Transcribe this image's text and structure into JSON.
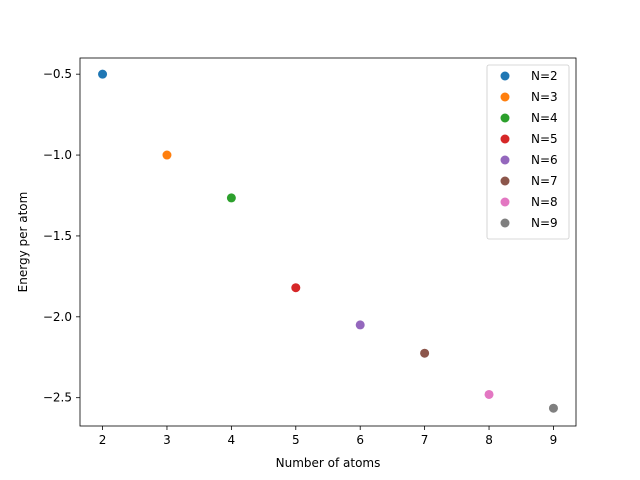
{
  "chart_data": {
    "type": "scatter",
    "title": "",
    "xlabel": "Number of atoms",
    "ylabel": "Energy per atom",
    "xlim": [
      1.65,
      9.35
    ],
    "ylim": [
      -2.675,
      -0.4
    ],
    "x_ticks": [
      {
        "value": 2,
        "label": "2"
      },
      {
        "value": 3,
        "label": "3"
      },
      {
        "value": 4,
        "label": "4"
      },
      {
        "value": 5,
        "label": "5"
      },
      {
        "value": 6,
        "label": "6"
      },
      {
        "value": 7,
        "label": "7"
      },
      {
        "value": 8,
        "label": "8"
      },
      {
        "value": 9,
        "label": "9"
      }
    ],
    "y_ticks": [
      {
        "value": -0.5,
        "label": "−0.5"
      },
      {
        "value": -1.0,
        "label": "−1.0"
      },
      {
        "value": -1.5,
        "label": "−1.5"
      },
      {
        "value": -2.0,
        "label": "−2.0"
      },
      {
        "value": -2.5,
        "label": "−2.5"
      }
    ],
    "grid": false,
    "legend_position": "top-right",
    "series": [
      {
        "name": "N=2",
        "color": "#1f77b4",
        "x": [
          2
        ],
        "y": [
          -0.5
        ]
      },
      {
        "name": "N=3",
        "color": "#ff7f0e",
        "x": [
          3
        ],
        "y": [
          -1.0
        ]
      },
      {
        "name": "N=4",
        "color": "#2ca02c",
        "x": [
          4
        ],
        "y": [
          -1.265
        ]
      },
      {
        "name": "N=5",
        "color": "#d62728",
        "x": [
          5
        ],
        "y": [
          -1.82
        ]
      },
      {
        "name": "N=6",
        "color": "#9467bd",
        "x": [
          6
        ],
        "y": [
          -2.05
        ]
      },
      {
        "name": "N=7",
        "color": "#8c564b",
        "x": [
          7
        ],
        "y": [
          -2.225
        ]
      },
      {
        "name": "N=8",
        "color": "#e377c2",
        "x": [
          8
        ],
        "y": [
          -2.48
        ]
      },
      {
        "name": "N=9",
        "color": "#7f7f7f",
        "x": [
          9
        ],
        "y": [
          -2.565
        ]
      }
    ]
  }
}
